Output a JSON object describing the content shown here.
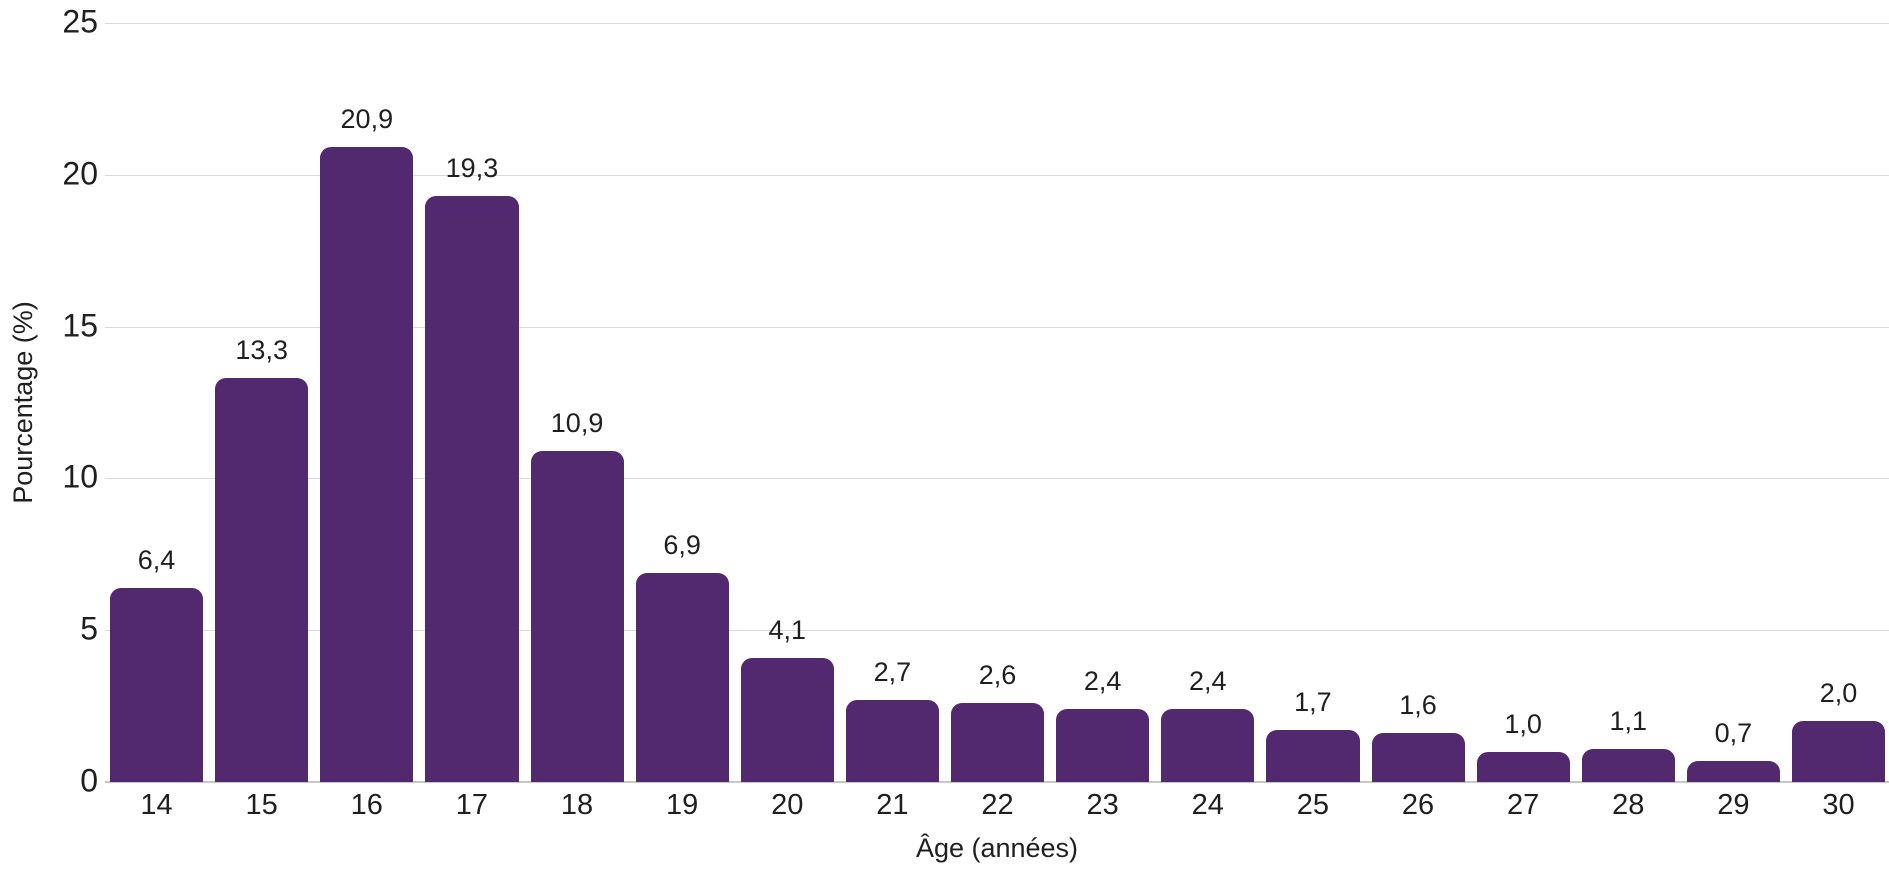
{
  "chart_data": {
    "type": "bar",
    "title": "",
    "xlabel": "Âge (années)",
    "ylabel": "Pourcentage (%)",
    "categories": [
      "14",
      "15",
      "16",
      "17",
      "18",
      "19",
      "20",
      "21",
      "22",
      "23",
      "24",
      "25",
      "26",
      "27",
      "28",
      "29",
      "30"
    ],
    "values": [
      6.4,
      13.3,
      20.9,
      19.3,
      10.9,
      6.9,
      4.1,
      2.7,
      2.6,
      2.4,
      2.4,
      1.7,
      1.6,
      1.0,
      1.1,
      0.7,
      2.0
    ],
    "value_labels": [
      "6,4",
      "13,3",
      "20,9",
      "19,3",
      "10,9",
      "6,9",
      "4,1",
      "2,7",
      "2,6",
      "2,4",
      "2,4",
      "1,7",
      "1,6",
      "1,0",
      "1,1",
      "0,7",
      "2,0"
    ],
    "ylim": [
      0,
      25
    ],
    "yticks": [
      0,
      5,
      10,
      15,
      20,
      25
    ],
    "ytick_labels": [
      "0",
      "5",
      "10",
      "15",
      "20",
      "25"
    ],
    "grid": "horizontal-only",
    "legend": "none",
    "bar_corner_radius_px": 11
  },
  "colors": {
    "bar": "#52296F",
    "gridline": "#d9d9d9",
    "axis_line": "#c7c7c7",
    "text": "#1f1f1f",
    "background": "#ffffff"
  }
}
